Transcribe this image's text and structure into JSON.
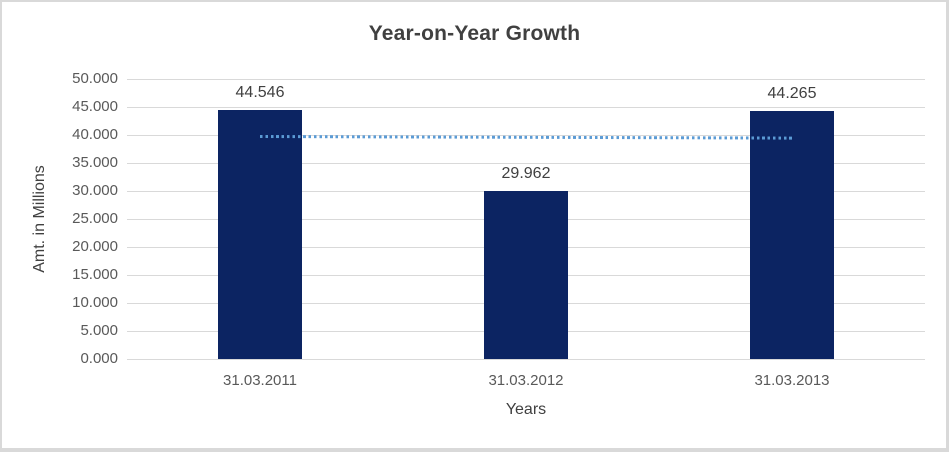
{
  "chart_data": {
    "type": "bar",
    "title": "Year-on-Year Growth",
    "xlabel": "Years",
    "ylabel": "Amt. in Millions",
    "categories": [
      "31.03.2011",
      "31.03.2012",
      "31.03.2013"
    ],
    "values": [
      44.546,
      29.962,
      44.265
    ],
    "data_labels": [
      "44.546",
      "29.962",
      "44.265"
    ],
    "y_tick_labels": [
      "50.000",
      "45.000",
      "40.000",
      "35.000",
      "30.000",
      "25.000",
      "20.000",
      "15.000",
      "10.000",
      "5.000",
      "0.000"
    ],
    "ylim": [
      0,
      50
    ],
    "grid": true,
    "legend_position": "none",
    "trendline": {
      "type": "linear",
      "style": "dotted",
      "endpoint_values": [
        39.73,
        39.45
      ]
    },
    "colors": {
      "bar": "#0c2462",
      "trendline": "#5b9bd5",
      "gridline": "#d9d9d9",
      "axis_text": "#595959",
      "title_text": "#404040",
      "border": "#d9d9d9",
      "background": "#ffffff"
    }
  }
}
